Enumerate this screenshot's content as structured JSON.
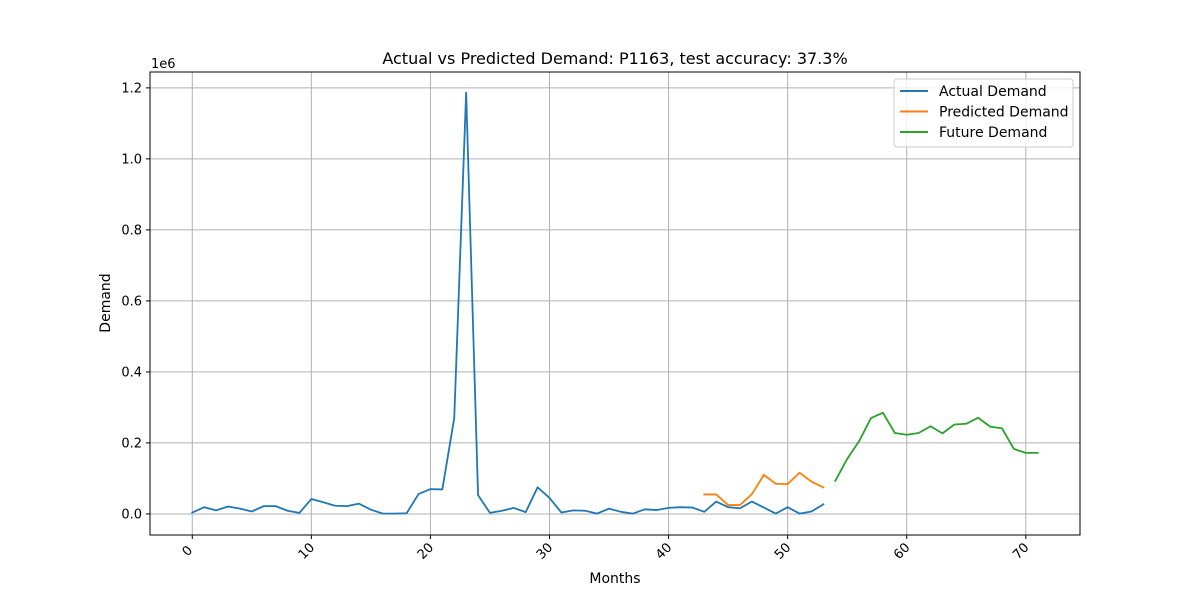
{
  "chart_data": {
    "type": "line",
    "title": "Actual vs Predicted Demand: P1163, test accuracy: 37.3%",
    "xlabel": "Months",
    "ylabel": "Demand",
    "y_offset_label": "1e6",
    "xlim": [
      -3.55,
      74.55
    ],
    "ylim": [
      -0.0593,
      1.2447
    ],
    "x_ticks": [
      0,
      10,
      20,
      30,
      40,
      50,
      60,
      70
    ],
    "x_tick_labels": [
      "0",
      "10",
      "20",
      "30",
      "40",
      "50",
      "60",
      "70"
    ],
    "y_ticks": [
      0.0,
      0.2,
      0.4,
      0.6,
      0.8,
      1.0,
      1.2
    ],
    "y_tick_labels": [
      "0.0",
      "0.2",
      "0.4",
      "0.6",
      "0.8",
      "1.0",
      "1.2"
    ],
    "grid": true,
    "legend_position": "top-right",
    "series": [
      {
        "name": "Actual Demand",
        "color": "#1f77b4",
        "x": [
          0,
          1,
          2,
          3,
          4,
          5,
          6,
          7,
          8,
          9,
          10,
          11,
          12,
          13,
          14,
          15,
          16,
          17,
          18,
          19,
          20,
          21,
          22,
          23,
          24,
          25,
          26,
          27,
          28,
          29,
          30,
          31,
          32,
          33,
          34,
          35,
          36,
          37,
          38,
          39,
          40,
          41,
          42,
          43,
          44,
          45,
          46,
          47,
          48,
          49,
          50,
          51,
          52,
          53
        ],
        "y": [
          0.004,
          0.019,
          0.01,
          0.021,
          0.015,
          0.007,
          0.022,
          0.022,
          0.009,
          0.003,
          0.042,
          0.033,
          0.023,
          0.022,
          0.029,
          0.012,
          0.001,
          0.001,
          0.002,
          0.056,
          0.07,
          0.069,
          0.27,
          1.187,
          0.053,
          0.003,
          0.009,
          0.017,
          0.005,
          0.075,
          0.045,
          0.004,
          0.01,
          0.009,
          0.001,
          0.015,
          0.006,
          0.001,
          0.013,
          0.011,
          0.017,
          0.019,
          0.018,
          0.006,
          0.035,
          0.019,
          0.016,
          0.035,
          0.018,
          0.001,
          0.019,
          0.001,
          0.007,
          0.027
        ]
      },
      {
        "name": "Predicted Demand",
        "color": "#ff7f0e",
        "x": [
          43,
          44,
          45,
          46,
          47,
          48,
          49,
          50,
          51,
          52,
          53
        ],
        "y": [
          0.055,
          0.055,
          0.025,
          0.025,
          0.056,
          0.11,
          0.085,
          0.084,
          0.116,
          0.091,
          0.075
        ]
      },
      {
        "name": "Future Demand",
        "color": "#2ca02c",
        "x": [
          54,
          55,
          56,
          57,
          58,
          59,
          60,
          61,
          62,
          63,
          64,
          65,
          66,
          67,
          68,
          69,
          70,
          71
        ],
        "y": [
          0.093,
          0.155,
          0.205,
          0.27,
          0.285,
          0.228,
          0.223,
          0.228,
          0.247,
          0.227,
          0.252,
          0.254,
          0.271,
          0.246,
          0.241,
          0.183,
          0.172,
          0.172
        ]
      }
    ]
  }
}
